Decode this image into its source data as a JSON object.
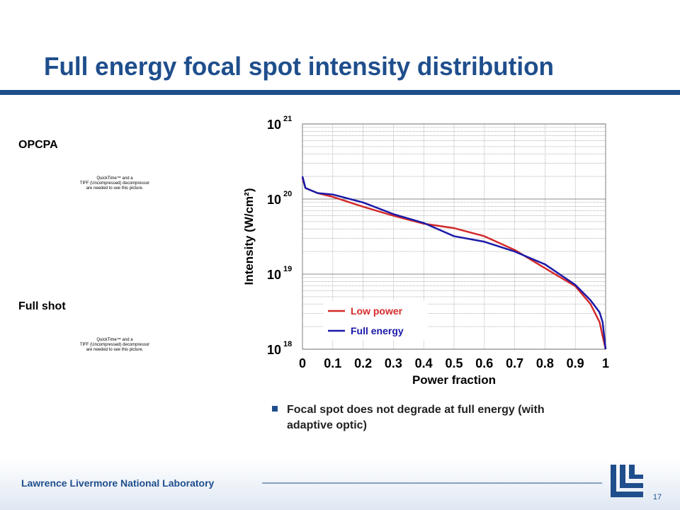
{
  "header": {
    "title": "Full energy focal spot intensity distribution"
  },
  "panels": [
    {
      "label": "OPCPA",
      "placeholder": [
        "QuickTime™ and a",
        "TIFF (Uncompressed) decompressor",
        "are needed to see this picture."
      ]
    },
    {
      "label": "Full shot",
      "placeholder": [
        "QuickTime™ and a",
        "TIFF (Uncompressed) decompressor",
        "are needed to see this picture."
      ]
    }
  ],
  "chart_data": {
    "type": "line",
    "xlabel": "Power fraction",
    "ylabel": "Intensity (W/cm²)",
    "x": [
      0,
      0.01,
      0.05,
      0.1,
      0.2,
      0.3,
      0.4,
      0.5,
      0.6,
      0.7,
      0.8,
      0.9,
      0.95,
      0.98,
      0.99,
      1
    ],
    "series": [
      {
        "name": "Low power",
        "color": "#d42a2a",
        "values": [
          1.9e+20,
          1.4e+20,
          1.2e+20,
          1.07e+20,
          7.9e+19,
          6e+19,
          4.7e+19,
          4.1e+19,
          3.2e+19,
          2.1e+19,
          1.2e+19,
          6.9e+18,
          4e+18,
          2.3e+18,
          1.5e+18,
          1e+18
        ]
      },
      {
        "name": "Full energy",
        "color": "#1a1aa8",
        "values": [
          2e+20,
          1.4e+20,
          1.2e+20,
          1.15e+20,
          9e+19,
          6.3e+19,
          4.8e+19,
          3.2e+19,
          2.7e+19,
          2e+19,
          1.35e+19,
          7.2e+18,
          4.5e+18,
          3.1e+18,
          2.3e+18,
          1e+18
        ]
      }
    ],
    "xlim": [
      0,
      1
    ],
    "xticks": [
      0,
      0.1,
      0.2,
      0.3,
      0.4,
      0.5,
      0.6,
      0.7,
      0.8,
      0.9,
      1
    ],
    "ylim": [
      1e+18,
      1e+21
    ],
    "yticks": [
      {
        "value": 1e+18,
        "label": "10",
        "exponent": "18"
      },
      {
        "value": 1e+19,
        "label": "10",
        "exponent": "19"
      },
      {
        "value": 1e+20,
        "label": "10",
        "exponent": "20"
      },
      {
        "value": 1e+21,
        "label": "10",
        "exponent": "21"
      }
    ],
    "log_y": true,
    "grid": true,
    "legend": "lower left"
  },
  "bullets": [
    "Focal spot does not degrade at full energy (with adaptive optic)"
  ],
  "footer": {
    "organization": "Lawrence Livermore National Laboratory",
    "page": "17"
  }
}
